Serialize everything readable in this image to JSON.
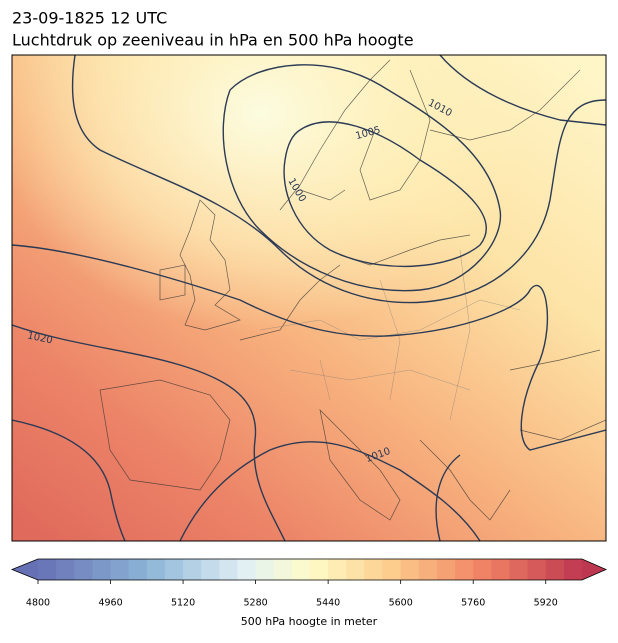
{
  "title": [
    "23-09-1825 12 UTC",
    "Luchtdruk op zeeniveau in hPa en 500 hPa hoogte"
  ],
  "isobar_labels": [
    1010,
    1005,
    1000,
    1020,
    1010
  ],
  "colorbar": {
    "label": "500 hPa hoogte in meter",
    "range": [
      4800,
      6000
    ],
    "ticks": [
      4800,
      4960,
      5120,
      5280,
      5440,
      5600,
      5760,
      5920
    ]
  }
}
